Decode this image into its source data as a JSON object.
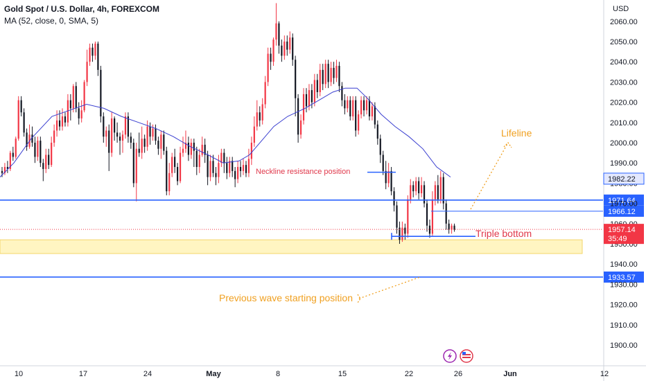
{
  "header": {
    "title": "Gold Spot / U.S. Dollar, 4h, FOREXCOM",
    "indicator": "MA (52, close, 0, SMA, 5)"
  },
  "axis": {
    "currency": "USD"
  },
  "colors": {
    "up": "#f23645",
    "down": "#131722",
    "ma": "#3a3fd0",
    "level": "#2962ff",
    "zone": "#fff5c2",
    "orange": "#f0a020",
    "red_badge": "#f23645"
  },
  "chart_data": {
    "type": "candlestick",
    "y_ticks": [
      "2060.00",
      "2050.00",
      "2040.00",
      "2030.00",
      "2020.00",
      "2010.00",
      "2000.00",
      "1990.00",
      "1980.00",
      "1970.00",
      "1960.00",
      "1950.00",
      "1940.00",
      "1930.00",
      "1920.00",
      "1910.00",
      "1900.00"
    ],
    "x_ticks": [
      "10",
      "17",
      "24",
      "May",
      "8",
      "15",
      "22",
      "26",
      "Jun",
      "12"
    ],
    "ylim": [
      1892,
      2069
    ],
    "candles": [
      [
        1986,
        1985,
        1988,
        1983
      ],
      [
        1985,
        1988,
        1990,
        1984
      ],
      [
        1988,
        1987,
        1991,
        1985
      ],
      [
        1987,
        1995,
        1996,
        1986
      ],
      [
        1995,
        1993,
        1998,
        1991
      ],
      [
        1993,
        2002,
        2003,
        1992
      ],
      [
        2002,
        2021,
        2023,
        2001
      ],
      [
        2021,
        2015,
        2023,
        2013
      ],
      [
        2015,
        2005,
        2017,
        2003
      ],
      [
        2005,
        1998,
        2007,
        1996
      ],
      [
        1998,
        2004,
        2009,
        1997
      ],
      [
        2004,
        2000,
        2008,
        1998
      ],
      [
        2000,
        1993,
        2003,
        1990
      ],
      [
        1993,
        2001,
        2003,
        1991
      ],
      [
        2001,
        1990,
        2003,
        1988
      ],
      [
        1990,
        1987,
        1992,
        1981
      ],
      [
        1987,
        1994,
        1997,
        1985
      ],
      [
        1994,
        1989,
        1997,
        1987
      ],
      [
        1989,
        2000,
        2003,
        1988
      ],
      [
        2000,
        2006,
        2009,
        1998
      ],
      [
        2006,
        2011,
        2016,
        2003
      ],
      [
        2011,
        2008,
        2016,
        2006
      ],
      [
        2008,
        2013,
        2017,
        2006
      ],
      [
        2013,
        2010,
        2015,
        2008
      ],
      [
        2010,
        2021,
        2024,
        2008
      ],
      [
        2021,
        2017,
        2024,
        2011
      ],
      [
        2017,
        2028,
        2029,
        2015
      ],
      [
        2028,
        2017,
        2030,
        2015
      ],
      [
        2017,
        2012,
        2020,
        2009
      ],
      [
        2012,
        2016,
        2021,
        2010
      ],
      [
        2016,
        2030,
        2031,
        2015
      ],
      [
        2030,
        2040,
        2046,
        2028
      ],
      [
        2040,
        2047,
        2049,
        2038
      ],
      [
        2047,
        2043,
        2049,
        2040
      ],
      [
        2043,
        2049,
        2050,
        2041
      ],
      [
        2049,
        2036,
        2050,
        2033
      ],
      [
        2036,
        2013,
        2038,
        2010
      ],
      [
        2013,
        2003,
        2015,
        2000
      ],
      [
        2003,
        2006,
        2008,
        1998
      ],
      [
        2006,
        1995,
        2009,
        1986
      ],
      [
        1995,
        2012,
        2015,
        1993
      ],
      [
        2012,
        2005,
        2013,
        2001
      ],
      [
        2005,
        2003,
        2010,
        2000
      ],
      [
        2003,
        2001,
        2005,
        1994
      ],
      [
        2001,
        2004,
        2006,
        1995
      ],
      [
        2004,
        2013,
        2015,
        2002
      ],
      [
        2013,
        2003,
        2015,
        2000
      ],
      [
        2003,
        2000,
        2005,
        1997
      ],
      [
        2000,
        1980,
        2002,
        1978
      ],
      [
        1980,
        1997,
        2000,
        1971
      ],
      [
        1997,
        1995,
        2005,
        1993
      ],
      [
        1995,
        2002,
        2008,
        1992
      ],
      [
        2002,
        1998,
        2004,
        1995
      ],
      [
        1998,
        2008,
        2011,
        1996
      ],
      [
        2008,
        2003,
        2010,
        1999
      ],
      [
        2003,
        2007,
        2009,
        2001
      ],
      [
        2007,
        2001,
        2009,
        1999
      ],
      [
        2001,
        1997,
        2003,
        1994
      ],
      [
        1997,
        2004,
        2006,
        1992
      ],
      [
        2004,
        1996,
        2006,
        1994
      ],
      [
        1996,
        1976,
        1998,
        1974
      ],
      [
        1976,
        1985,
        1990,
        1974
      ],
      [
        1985,
        1993,
        1995,
        1983
      ],
      [
        1993,
        1988,
        1997,
        1985
      ],
      [
        1988,
        1981,
        1990,
        1979
      ],
      [
        1981,
        1995,
        1998,
        1980
      ],
      [
        1995,
        1997,
        2003,
        1993
      ],
      [
        1997,
        2000,
        2006,
        1995
      ],
      [
        2000,
        1994,
        2003,
        1991
      ],
      [
        1994,
        2000,
        2002,
        1992
      ],
      [
        2000,
        1996,
        2002,
        1988
      ],
      [
        1996,
        1988,
        1998,
        1984
      ],
      [
        1988,
        1994,
        1997,
        1985
      ],
      [
        1994,
        1999,
        2003,
        1993
      ],
      [
        1999,
        1994,
        2002,
        1990
      ],
      [
        1994,
        1983,
        1996,
        1979
      ],
      [
        1983,
        1991,
        1994,
        1981
      ],
      [
        1991,
        1985,
        1994,
        1983
      ],
      [
        1985,
        1983,
        1988,
        1979
      ],
      [
        1983,
        1990,
        1994,
        1980
      ],
      [
        1990,
        1995,
        1997,
        1988
      ],
      [
        1995,
        1990,
        1997,
        1985
      ],
      [
        1990,
        1985,
        1993,
        1982
      ],
      [
        1985,
        1991,
        1993,
        1983
      ],
      [
        1991,
        1986,
        1993,
        1983
      ],
      [
        1986,
        1982,
        1988,
        1978
      ],
      [
        1982,
        1988,
        1991,
        1980
      ],
      [
        1988,
        1986,
        1991,
        1983
      ],
      [
        1986,
        1989,
        1992,
        1984
      ],
      [
        1989,
        1985,
        1991,
        1983
      ],
      [
        1985,
        1992,
        1997,
        1983
      ],
      [
        1992,
        2000,
        2003,
        1989
      ],
      [
        2000,
        2008,
        2013,
        1998
      ],
      [
        2008,
        2015,
        2021,
        2006
      ],
      [
        2015,
        2011,
        2018,
        2008
      ],
      [
        2011,
        2019,
        2022,
        2009
      ],
      [
        2019,
        2030,
        2033,
        2017
      ],
      [
        2030,
        2044,
        2047,
        2028
      ],
      [
        2044,
        2040,
        2047,
        2036
      ],
      [
        2040,
        2051,
        2052,
        2038
      ],
      [
        2051,
        2059,
        2069,
        2048
      ],
      [
        2059,
        2048,
        2060,
        2044
      ],
      [
        2048,
        2043,
        2051,
        2040
      ],
      [
        2043,
        2050,
        2053,
        2041
      ],
      [
        2050,
        2046,
        2053,
        2043
      ],
      [
        2046,
        2052,
        2055,
        2044
      ],
      [
        2052,
        2041,
        2054,
        2038
      ],
      [
        2041,
        2022,
        2043,
        2013
      ],
      [
        2022,
        2004,
        2024,
        2000
      ],
      [
        2004,
        2011,
        2014,
        2002
      ],
      [
        2011,
        2024,
        2027,
        2009
      ],
      [
        2024,
        2018,
        2027,
        2015
      ],
      [
        2018,
        2026,
        2029,
        2016
      ],
      [
        2026,
        2020,
        2029,
        2017
      ],
      [
        2020,
        2031,
        2034,
        2018
      ],
      [
        2031,
        2025,
        2034,
        2022
      ],
      [
        2025,
        2036,
        2039,
        2023
      ],
      [
        2036,
        2029,
        2039,
        2026
      ],
      [
        2029,
        2039,
        2041,
        2027
      ],
      [
        2039,
        2030,
        2041,
        2027
      ],
      [
        2030,
        2037,
        2040,
        2028
      ],
      [
        2037,
        2032,
        2040,
        2029
      ],
      [
        2032,
        2038,
        2041,
        2030
      ],
      [
        2038,
        2028,
        2040,
        2025
      ],
      [
        2028,
        2021,
        2030,
        2018
      ],
      [
        2021,
        2017,
        2024,
        2014
      ],
      [
        2017,
        2021,
        2023,
        2015
      ],
      [
        2021,
        2013,
        2023,
        2011
      ],
      [
        2013,
        2021,
        2023,
        2011
      ],
      [
        2021,
        2006,
        2023,
        2003
      ],
      [
        2006,
        2014,
        2016,
        2004
      ],
      [
        2014,
        2021,
        2023,
        2012
      ],
      [
        2021,
        2016,
        2023,
        2013
      ],
      [
        2016,
        2021,
        2023,
        2014
      ],
      [
        2021,
        2013,
        2023,
        2011
      ],
      [
        2013,
        2018,
        2020,
        2011
      ],
      [
        2018,
        2009,
        2020,
        2007
      ],
      [
        2009,
        2002,
        2011,
        1999
      ],
      [
        2002,
        1994,
        2004,
        1990
      ],
      [
        1994,
        1986,
        1996,
        1984
      ],
      [
        1986,
        1980,
        1991,
        1977
      ],
      [
        1980,
        1986,
        1990,
        1978
      ],
      [
        1986,
        1976,
        1988,
        1974
      ],
      [
        1976,
        1969,
        1978,
        1966
      ],
      [
        1969,
        1958,
        1971,
        1955
      ],
      [
        1958,
        1952,
        1961,
        1950
      ],
      [
        1952,
        1958,
        1961,
        1951
      ],
      [
        1958,
        1955,
        1960,
        1952
      ],
      [
        1955,
        1972,
        1974,
        1953
      ],
      [
        1972,
        1979,
        1982,
        1970
      ],
      [
        1979,
        1976,
        1981,
        1973
      ],
      [
        1976,
        1981,
        1983,
        1974
      ],
      [
        1981,
        1975,
        1983,
        1972
      ],
      [
        1975,
        1979,
        1983,
        1973
      ],
      [
        1979,
        1970,
        1981,
        1968
      ],
      [
        1970,
        1959,
        1972,
        1956
      ],
      [
        1959,
        1955,
        1962,
        1953
      ],
      [
        1955,
        1972,
        1976,
        1954
      ],
      [
        1972,
        1979,
        1981,
        1969
      ],
      [
        1979,
        1972,
        1984,
        1970
      ],
      [
        1972,
        1983,
        1986,
        1970
      ],
      [
        1983,
        1970,
        1985,
        1967
      ],
      [
        1970,
        1960,
        1972,
        1957
      ],
      [
        1960,
        1957,
        1962,
        1955
      ],
      [
        1957,
        1959,
        1960,
        1955
      ],
      [
        1959,
        1957,
        1960,
        1956
      ]
    ],
    "ma": [
      [
        0,
        1983
      ],
      [
        20,
        1990
      ],
      [
        45,
        2002
      ],
      [
        75,
        2013
      ],
      [
        100,
        2016
      ],
      [
        125,
        2019
      ],
      [
        150,
        2017
      ],
      [
        175,
        2013
      ],
      [
        200,
        2010
      ],
      [
        225,
        2007
      ],
      [
        250,
        2003
      ],
      [
        275,
        1998
      ],
      [
        300,
        1994
      ],
      [
        322,
        1990
      ],
      [
        345,
        1991
      ],
      [
        360,
        1994
      ],
      [
        380,
        2002
      ],
      [
        395,
        2008
      ],
      [
        415,
        2013
      ],
      [
        440,
        2017
      ],
      [
        465,
        2022
      ],
      [
        480,
        2025
      ],
      [
        498,
        2027
      ],
      [
        515,
        2027
      ],
      [
        530,
        2022
      ],
      [
        550,
        2014
      ],
      [
        570,
        2008
      ],
      [
        590,
        2003
      ],
      [
        610,
        1997
      ],
      [
        630,
        1988
      ],
      [
        650,
        1983
      ]
    ],
    "levels": [
      {
        "value": 1971.64,
        "label": "1971.64",
        "x_start": 0
      },
      {
        "value": 1933.57,
        "label": "1933.57",
        "x_start": 0
      },
      {
        "value": 1966.12,
        "label": "1966.12",
        "x_start": 622
      }
    ],
    "badges": [
      {
        "value": 1982.22,
        "label": "1982.22"
      },
      {
        "value": 1957.14,
        "label": "1957.14",
        "sub": "35:49"
      }
    ],
    "current_price": 1957.14,
    "zone": [
      1945.2,
      1952.0
    ],
    "neckline": 1985.4,
    "triple_bottom_y": 1953.7,
    "annotations": {
      "neckline": "Neckline resistance position",
      "triple_bottom": "Triple bottom",
      "lifeline": "Lifeline",
      "previous_wave": "Previous wave starting position"
    }
  }
}
